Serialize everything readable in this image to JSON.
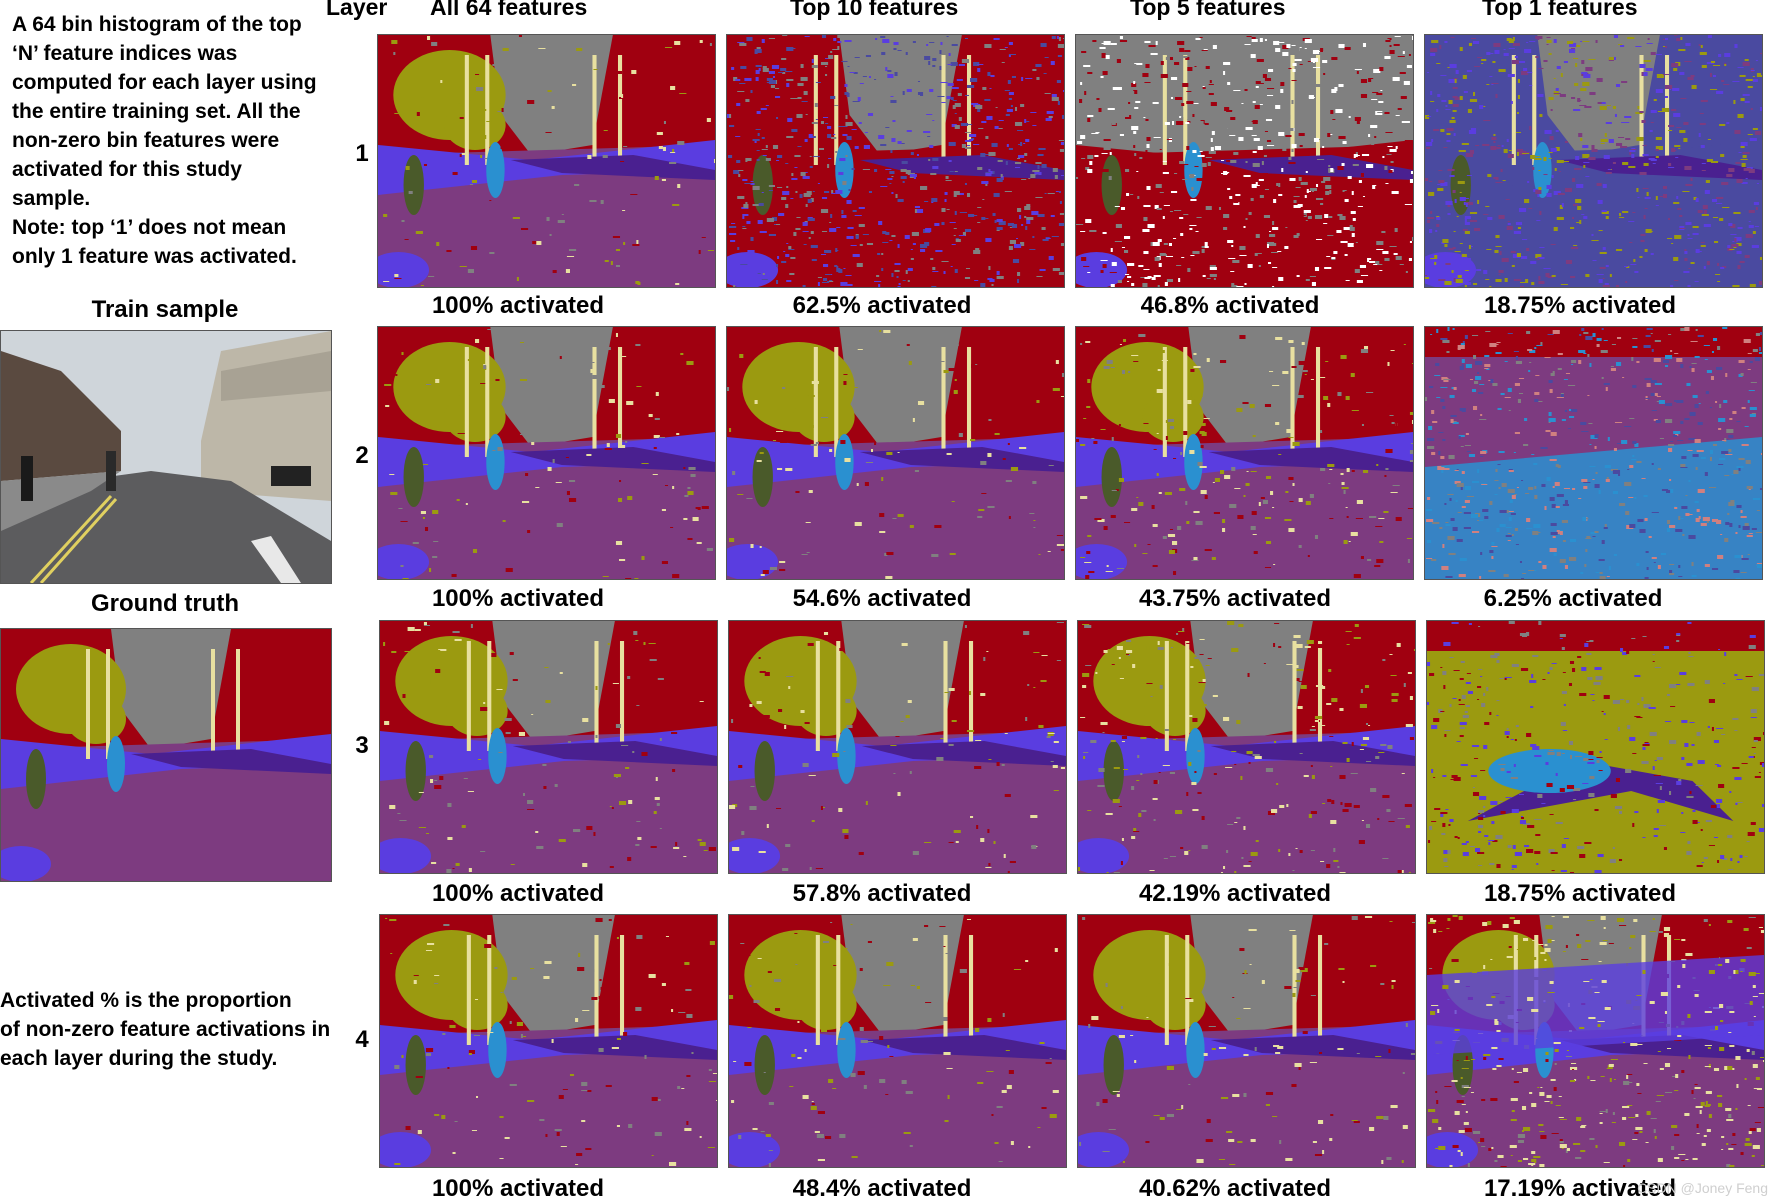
{
  "intro_text": "A 64 bin histogram of the top\n‘N’ feature indices was\ncomputed  for each layer using\nthe entire training set. All the\nnon-zero bin features  were\nactivated for this study\nsample.\nNote: top ‘1’ does not mean\nonly 1 feature was activated.",
  "train_sample_label": "Train sample",
  "ground_truth_label": "Ground truth",
  "note_text": "Activated % is the proportion\nof non-zero feature activations in\neach layer during the study.",
  "layer_header": "Layer",
  "column_headers": [
    "All 64 features",
    "Top 10 features",
    "Top 5 features",
    "Top 1 features"
  ],
  "layers": [
    {
      "number": "1",
      "activations": [
        "100% activated",
        "62.5% activated",
        "46.8% activated",
        "18.75% activated"
      ]
    },
    {
      "number": "2",
      "activations": [
        "100% activated",
        "54.6% activated",
        "43.75% activated",
        "6.25% activated"
      ]
    },
    {
      "number": "3",
      "activations": [
        "100% activated",
        "57.8% activated",
        "42.19% activated",
        "18.75% activated"
      ]
    },
    {
      "number": "4",
      "activations": [
        "100% activated",
        "48.4% activated",
        "40.62% activated",
        "17.19% activated"
      ]
    }
  ],
  "watermark": "CSDN @Joney Feng",
  "palette": {
    "road": "#7d3b80",
    "building": "#a00010",
    "sky": "#808080",
    "tree": "#9b9a10",
    "sidewalk": "#5a3de0",
    "pole": "#e8e0a0",
    "pedestrian": "#2a90d0",
    "car": "#4a2090",
    "fence": "#4a4aa0",
    "sign": "#d08080"
  }
}
